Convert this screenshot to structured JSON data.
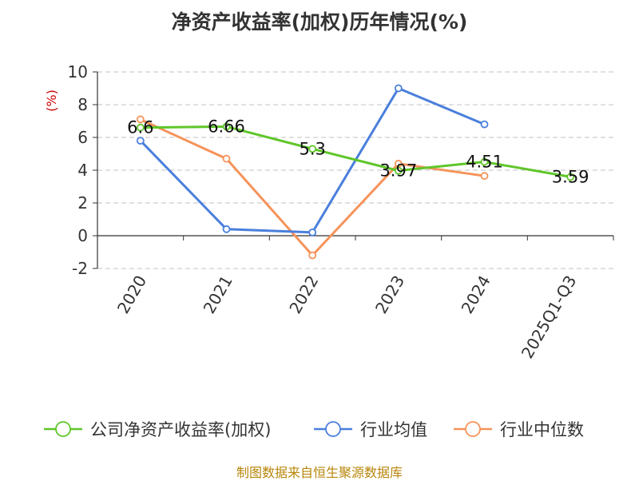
{
  "title": "净资产收益率(加权)历年情况(%)",
  "source": "制图数据来自恒生聚源数据库",
  "colors": {
    "company": "#5fc62a",
    "industry_avg": "#4a7fdc",
    "industry_median": "#f6935a",
    "ylabel": "#cc0000",
    "grid": "#c0c0c0",
    "axis": "#333333",
    "source": "#b8860b"
  },
  "chart_data": {
    "type": "line",
    "title": "净资产收益率(加权)历年情况(%)",
    "ylabel": "(%)",
    "xlabel": "",
    "categories": [
      "2020",
      "2021",
      "2022",
      "2023",
      "2024",
      "2025Q1-Q3"
    ],
    "yticks": [
      "10",
      "8",
      "6",
      "4",
      "2",
      "0",
      "-2"
    ],
    "ylim": [
      -2,
      10
    ],
    "grid": true,
    "legend_position": "bottom",
    "series": [
      {
        "name": "公司净资产收益率(加权)",
        "color": "#5fc62a",
        "values": [
          6.6,
          6.66,
          5.3,
          3.97,
          4.51,
          3.59
        ],
        "labels": [
          "6.6",
          "6.66",
          "5.3",
          "3.97",
          "4.51",
          "3.59"
        ]
      },
      {
        "name": "行业均值",
        "color": "#4a7fdc",
        "values": [
          5.8,
          0.4,
          0.2,
          9.0,
          6.8,
          null
        ],
        "labels": null
      },
      {
        "name": "行业中位数",
        "color": "#f6935a",
        "values": [
          7.1,
          4.7,
          -1.2,
          4.4,
          3.65,
          null
        ],
        "labels": null
      }
    ]
  }
}
